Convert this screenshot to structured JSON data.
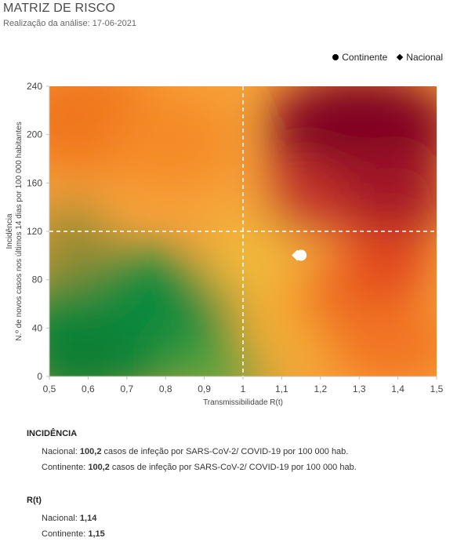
{
  "header": {
    "title": "MATRIZ DE RISCO",
    "subtitle": "Realização da análise: 17-06-2021"
  },
  "legend": {
    "continente": "Continente",
    "nacional": "Nacional"
  },
  "chart_data": {
    "type": "scatter",
    "xlabel": "Transmissibilidade R(t)",
    "ylabel_line1": "Incidência",
    "ylabel_line2": "N.º de novos casos nos últimos 14 dias por 100 000 habitantes",
    "xlim": [
      0.5,
      1.5
    ],
    "ylim": [
      0,
      240
    ],
    "x_ticks": [
      "0,5",
      "0,6",
      "0,7",
      "0,8",
      "0,9",
      "1",
      "1,1",
      "1,2",
      "1,3",
      "1,4",
      "1,5"
    ],
    "y_ticks": [
      "0",
      "40",
      "80",
      "120",
      "160",
      "200",
      "240"
    ],
    "thresholds": {
      "x": 1,
      "y": 120
    },
    "series": [
      {
        "name": "Continente",
        "marker": "circle",
        "x": 1.15,
        "y": 100.2,
        "color": "#ffffff"
      },
      {
        "name": "Nacional",
        "marker": "diamond",
        "x": 1.14,
        "y": 100.2,
        "color": "#ffffff"
      }
    ]
  },
  "incidencia": {
    "title": "INCIDÊNCIA",
    "nacional_label": "Nacional: ",
    "nacional_value": "100,2",
    "nacional_text": " casos de infeção por SARS-CoV-2/ COVID-19 por 100 000 hab.",
    "continente_label": "Continente: ",
    "continente_value": "100,2",
    "continente_text": " casos de infeção por SARS-CoV-2/ COVID-19 por 100 000 hab."
  },
  "rt": {
    "title": "R(t)",
    "nacional_label": "Nacional: ",
    "nacional_value": "1,14",
    "continente_label": "Continente: ",
    "continente_value": "1,15"
  }
}
